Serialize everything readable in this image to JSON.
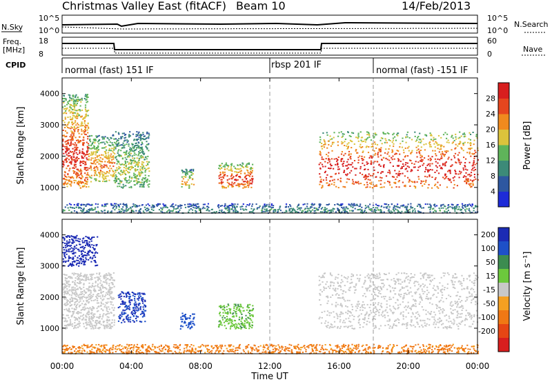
{
  "header": {
    "station": "Christmas Valley East (fitACF)",
    "beam": "Beam 10",
    "date": "14/Feb/2013"
  },
  "status_panels": {
    "nsky_label": "N.Sky",
    "nsearch_label": "N.Search",
    "freq_label_1": "Freq.",
    "freq_label_2": "[MHz]",
    "nave_label": "Nave",
    "cpid_label": "CPID",
    "noise_ticks": [
      "10^5",
      "10^0"
    ],
    "noise_right_ticks": [
      "10^5",
      "10^0"
    ],
    "freq_ticks": [
      "18",
      "8"
    ],
    "nave_ticks": [
      "60",
      "0"
    ]
  },
  "cpid_segments": [
    {
      "name": "normal (fast) 151 IF",
      "start_hour": 0,
      "end_hour": 12
    },
    {
      "name": "rbsp 201 IF",
      "start_hour": 12,
      "end_hour": 18
    },
    {
      "name": "normal (fast) -151 IF",
      "start_hour": 18,
      "end_hour": 24
    }
  ],
  "axes": {
    "y_label": "Slant Range [km]",
    "x_label": "Time UT",
    "y_ticks": [
      "1000",
      "2000",
      "3000",
      "4000"
    ],
    "x_ticks": [
      "00:00",
      "04:00",
      "08:00",
      "12:00",
      "16:00",
      "20:00",
      "00:00"
    ]
  },
  "colorbars": {
    "power_label": "Power [dB]",
    "power_ticks": [
      "4",
      "8",
      "12",
      "16",
      "20",
      "24",
      "28"
    ],
    "power_colors": [
      "#1e2bd8",
      "#2e57a0",
      "#3c8a78",
      "#5fb45a",
      "#dcc33c",
      "#f08a1e",
      "#e6461e",
      "#d81e1e"
    ],
    "velocity_label": "Velocity [m s⁻¹]",
    "velocity_ticks": [
      "200",
      "100",
      "50",
      "15",
      "-15",
      "-50",
      "-100",
      "-200"
    ],
    "velocity_colors": [
      "#1c2bb4",
      "#1e50c8",
      "#3c8c50",
      "#6cc83c",
      "#c8c8c8",
      "#f5a021",
      "#f07814",
      "#e64614",
      "#d81e1e"
    ]
  },
  "chart_data": [
    {
      "type": "heatmap",
      "title": "Power",
      "xlabel": "Time UT",
      "ylabel": "Slant Range [km]",
      "xlim": [
        "00:00",
        "24:00"
      ],
      "ylim": [
        180,
        4500
      ],
      "colorbar_range_dB": [
        0,
        30
      ],
      "echo_regions": [
        {
          "start_hour": 0.0,
          "end_hour": 1.5,
          "range_low_km": 1000,
          "range_high_km": 4000,
          "peak_dB": 28
        },
        {
          "start_hour": 1.5,
          "end_hour": 3.0,
          "range_low_km": 1200,
          "range_high_km": 2700,
          "peak_dB": 22
        },
        {
          "start_hour": 3.0,
          "end_hour": 5.0,
          "range_low_km": 1000,
          "range_high_km": 2800,
          "peak_dB": 16
        },
        {
          "start_hour": 6.8,
          "end_hour": 7.6,
          "range_low_km": 1000,
          "range_high_km": 1600,
          "peak_dB": 20
        },
        {
          "start_hour": 9.0,
          "end_hour": 11.0,
          "range_low_km": 1000,
          "range_high_km": 1800,
          "peak_dB": 28
        },
        {
          "start_hour": 14.8,
          "end_hour": 24.0,
          "range_low_km": 1000,
          "range_high_km": 2800,
          "peak_dB": 30
        },
        {
          "start_hour": 0.0,
          "end_hour": 24.0,
          "range_low_km": 200,
          "range_high_km": 500,
          "peak_dB": 10
        }
      ]
    },
    {
      "type": "heatmap",
      "title": "Velocity",
      "xlabel": "Time UT",
      "ylabel": "Slant Range [km]",
      "xlim": [
        "00:00",
        "24:00"
      ],
      "ylim": [
        180,
        4500
      ],
      "colorbar_range_ms": [
        -200,
        200
      ],
      "echo_regions": [
        {
          "start_hour": 0.0,
          "end_hour": 2.0,
          "range_low_km": 3000,
          "range_high_km": 4000,
          "velocity_ms": 200
        },
        {
          "start_hour": 0.0,
          "end_hour": 3.0,
          "range_low_km": 1000,
          "range_high_km": 2800,
          "velocity_ms": 0
        },
        {
          "start_hour": 3.2,
          "end_hour": 4.8,
          "range_low_km": 1200,
          "range_high_km": 2200,
          "velocity_ms": 150
        },
        {
          "start_hour": 6.8,
          "end_hour": 7.6,
          "range_low_km": 1000,
          "range_high_km": 1500,
          "velocity_ms": 120
        },
        {
          "start_hour": 9.0,
          "end_hour": 11.0,
          "range_low_km": 1000,
          "range_high_km": 1800,
          "velocity_ms": 40
        },
        {
          "start_hour": 14.8,
          "end_hour": 24.0,
          "range_low_km": 1000,
          "range_high_km": 2800,
          "velocity_ms": 0
        },
        {
          "start_hour": 0.0,
          "end_hour": 24.0,
          "range_low_km": 200,
          "range_high_km": 500,
          "velocity_ms": -60
        }
      ]
    }
  ]
}
